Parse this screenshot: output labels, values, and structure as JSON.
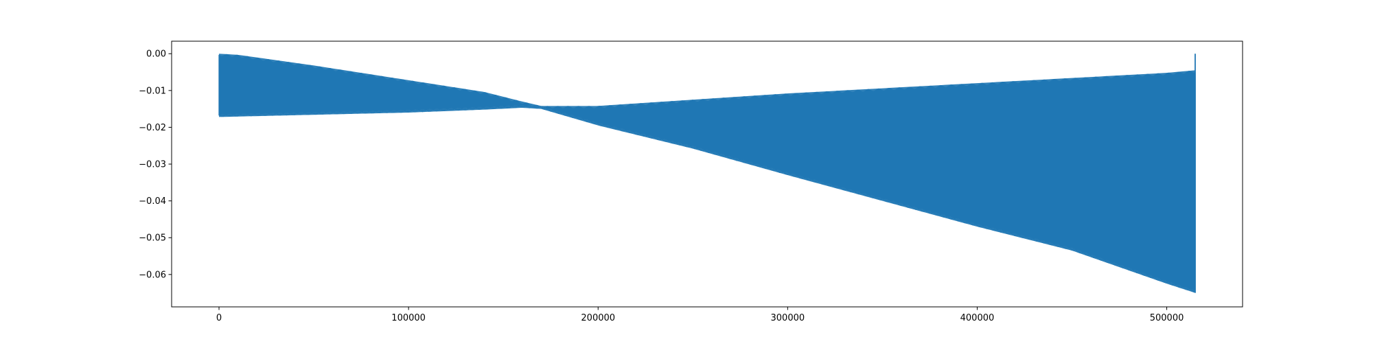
{
  "chart_data": {
    "type": "line",
    "title": "",
    "xlabel": "",
    "ylabel": "",
    "xlim": [
      -25000,
      540000
    ],
    "ylim": [
      -0.0688,
      0.0034
    ],
    "grid": false,
    "x_ticks": [
      {
        "value": 0,
        "label": "0"
      },
      {
        "value": 100000,
        "label": "100000"
      },
      {
        "value": 200000,
        "label": "200000"
      },
      {
        "value": 300000,
        "label": "300000"
      },
      {
        "value": 400000,
        "label": "400000"
      },
      {
        "value": 500000,
        "label": "500000"
      }
    ],
    "y_ticks": [
      {
        "value": 0.0,
        "label": "0.00"
      },
      {
        "value": -0.01,
        "label": "−0.01"
      },
      {
        "value": -0.02,
        "label": "−0.02"
      },
      {
        "value": -0.03,
        "label": "−0.03"
      },
      {
        "value": -0.04,
        "label": "−0.04"
      },
      {
        "value": -0.05,
        "label": "−0.05"
      },
      {
        "value": -0.06,
        "label": "−0.06"
      }
    ],
    "series": [
      {
        "color": "#1f77b4",
        "x_range": [
          0,
          515000
        ],
        "upper_envelope": {
          "x": [
            0,
            10000,
            50000,
            100000,
            140000,
            160000,
            170000,
            200000,
            300000,
            400000,
            500000,
            515000
          ],
          "y": [
            0.0,
            -0.0003,
            -0.0032,
            -0.0072,
            -0.0104,
            -0.013,
            -0.0142,
            -0.0142,
            -0.0108,
            -0.008,
            -0.0052,
            -0.0045
          ]
        },
        "lower_envelope": {
          "x": [
            0,
            50000,
            100000,
            140000,
            160000,
            170000,
            200000,
            250000,
            300000,
            350000,
            400000,
            450000,
            500000,
            515000
          ],
          "y": [
            -0.0172,
            -0.0166,
            -0.016,
            -0.0152,
            -0.0147,
            -0.015,
            -0.0195,
            -0.0258,
            -0.033,
            -0.04,
            -0.047,
            -0.0535,
            -0.0625,
            -0.065
          ]
        },
        "final_spike": {
          "x": 515000,
          "y_top": 0.0,
          "y_bottom": -0.065
        }
      }
    ]
  }
}
